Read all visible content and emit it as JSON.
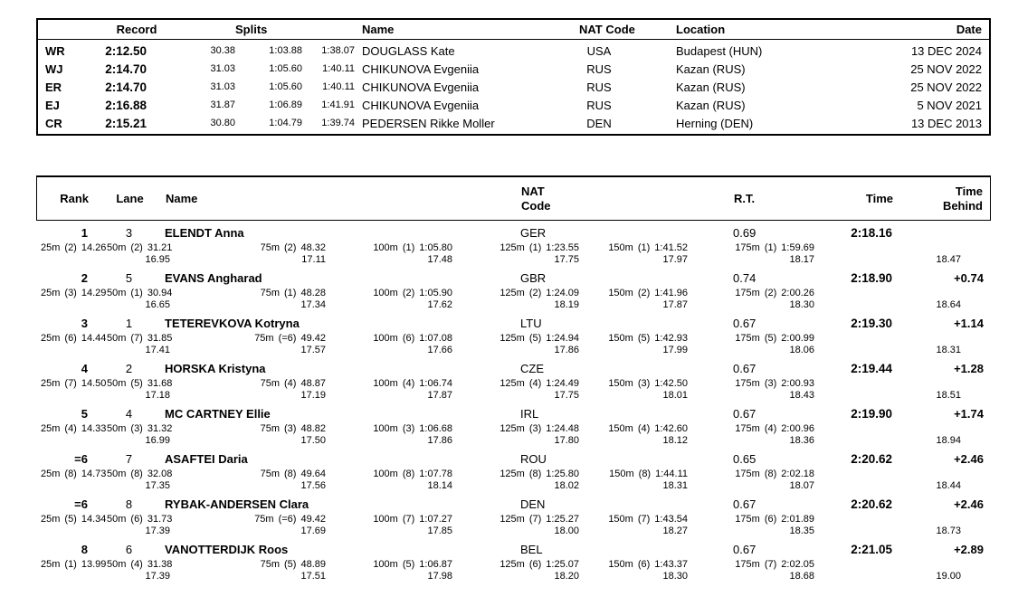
{
  "records_table": {
    "headers": {
      "record": "Record",
      "splits": "Splits",
      "name": "Name",
      "nat_code": "NAT Code",
      "location": "Location",
      "date": "Date"
    },
    "rows": [
      {
        "type": "WR",
        "time": "2:12.50",
        "split1": "30.38",
        "split2": "1:03.88",
        "split3": "1:38.07",
        "name": "DOUGLASS Kate",
        "nat": "USA",
        "location": "Budapest (HUN)",
        "date": "13 DEC 2024"
      },
      {
        "type": "WJ",
        "time": "2:14.70",
        "split1": "31.03",
        "split2": "1:05.60",
        "split3": "1:40.11",
        "name": "CHIKUNOVA Evgeniia",
        "nat": "RUS",
        "location": "Kazan (RUS)",
        "date": "25 NOV 2022"
      },
      {
        "type": "ER",
        "time": "2:14.70",
        "split1": "31.03",
        "split2": "1:05.60",
        "split3": "1:40.11",
        "name": "CHIKUNOVA Evgeniia",
        "nat": "RUS",
        "location": "Kazan (RUS)",
        "date": "25 NOV 2022"
      },
      {
        "type": "EJ",
        "time": "2:16.88",
        "split1": "31.87",
        "split2": "1:06.89",
        "split3": "1:41.91",
        "name": "CHIKUNOVA Evgeniia",
        "nat": "RUS",
        "location": "Kazan (RUS)",
        "date": "5 NOV 2021"
      },
      {
        "type": "CR",
        "time": "2:15.21",
        "split1": "30.80",
        "split2": "1:04.79",
        "split3": "1:39.74",
        "name": "PEDERSEN Rikke Moller",
        "nat": "DEN",
        "location": "Herning (DEN)",
        "date": "13 DEC 2013"
      }
    ]
  },
  "results_table": {
    "headers": {
      "rank": "Rank",
      "lane": "Lane",
      "name": "Name",
      "nat_line1": "NAT",
      "nat_line2": "Code",
      "rt": "R.T.",
      "time": "Time",
      "behind_line1": "Time",
      "behind_line2": "Behind"
    },
    "rows": [
      {
        "rank": "1",
        "lane": "3",
        "name": "ELENDT Anna",
        "nat": "GER",
        "rt": "0.69",
        "time": "2:18.16",
        "behind": "",
        "final_lap": "18.47",
        "splits": [
          {
            "d": "25m",
            "p": "(2)",
            "t": "14.26",
            "lap": ""
          },
          {
            "d": "50m",
            "p": "(2)",
            "t": "31.21",
            "lap": "16.95"
          },
          {
            "d": "75m",
            "p": "(2)",
            "t": "48.32",
            "lap": "17.11"
          },
          {
            "d": "100m",
            "p": "(1)",
            "t": "1:05.80",
            "lap": "17.48"
          },
          {
            "d": "125m",
            "p": "(1)",
            "t": "1:23.55",
            "lap": "17.75"
          },
          {
            "d": "150m",
            "p": "(1)",
            "t": "1:41.52",
            "lap": "17.97"
          },
          {
            "d": "175m",
            "p": "(1)",
            "t": "1:59.69",
            "lap": "18.17"
          }
        ]
      },
      {
        "rank": "2",
        "lane": "5",
        "name": "EVANS Angharad",
        "nat": "GBR",
        "rt": "0.74",
        "time": "2:18.90",
        "behind": "+0.74",
        "final_lap": "18.64",
        "splits": [
          {
            "d": "25m",
            "p": "(3)",
            "t": "14.29",
            "lap": ""
          },
          {
            "d": "50m",
            "p": "(1)",
            "t": "30.94",
            "lap": "16.65"
          },
          {
            "d": "75m",
            "p": "(1)",
            "t": "48.28",
            "lap": "17.34"
          },
          {
            "d": "100m",
            "p": "(2)",
            "t": "1:05.90",
            "lap": "17.62"
          },
          {
            "d": "125m",
            "p": "(2)",
            "t": "1:24.09",
            "lap": "18.19"
          },
          {
            "d": "150m",
            "p": "(2)",
            "t": "1:41.96",
            "lap": "17.87"
          },
          {
            "d": "175m",
            "p": "(2)",
            "t": "2:00.26",
            "lap": "18.30"
          }
        ]
      },
      {
        "rank": "3",
        "lane": "1",
        "name": "TETEREVKOVA Kotryna",
        "nat": "LTU",
        "rt": "0.67",
        "time": "2:19.30",
        "behind": "+1.14",
        "final_lap": "18.31",
        "splits": [
          {
            "d": "25m",
            "p": "(6)",
            "t": "14.44",
            "lap": ""
          },
          {
            "d": "50m",
            "p": "(7)",
            "t": "31.85",
            "lap": "17.41"
          },
          {
            "d": "75m",
            "p": "(=6)",
            "t": "49.42",
            "lap": "17.57"
          },
          {
            "d": "100m",
            "p": "(6)",
            "t": "1:07.08",
            "lap": "17.66"
          },
          {
            "d": "125m",
            "p": "(5)",
            "t": "1:24.94",
            "lap": "17.86"
          },
          {
            "d": "150m",
            "p": "(5)",
            "t": "1:42.93",
            "lap": "17.99"
          },
          {
            "d": "175m",
            "p": "(5)",
            "t": "2:00.99",
            "lap": "18.06"
          }
        ]
      },
      {
        "rank": "4",
        "lane": "2",
        "name": "HORSKA Kristyna",
        "nat": "CZE",
        "rt": "0.67",
        "time": "2:19.44",
        "behind": "+1.28",
        "final_lap": "18.51",
        "splits": [
          {
            "d": "25m",
            "p": "(7)",
            "t": "14.50",
            "lap": ""
          },
          {
            "d": "50m",
            "p": "(5)",
            "t": "31.68",
            "lap": "17.18"
          },
          {
            "d": "75m",
            "p": "(4)",
            "t": "48.87",
            "lap": "17.19"
          },
          {
            "d": "100m",
            "p": "(4)",
            "t": "1:06.74",
            "lap": "17.87"
          },
          {
            "d": "125m",
            "p": "(4)",
            "t": "1:24.49",
            "lap": "17.75"
          },
          {
            "d": "150m",
            "p": "(3)",
            "t": "1:42.50",
            "lap": "18.01"
          },
          {
            "d": "175m",
            "p": "(3)",
            "t": "2:00.93",
            "lap": "18.43"
          }
        ]
      },
      {
        "rank": "5",
        "lane": "4",
        "name": "MC CARTNEY Ellie",
        "nat": "IRL",
        "rt": "0.67",
        "time": "2:19.90",
        "behind": "+1.74",
        "final_lap": "18.94",
        "splits": [
          {
            "d": "25m",
            "p": "(4)",
            "t": "14.33",
            "lap": ""
          },
          {
            "d": "50m",
            "p": "(3)",
            "t": "31.32",
            "lap": "16.99"
          },
          {
            "d": "75m",
            "p": "(3)",
            "t": "48.82",
            "lap": "17.50"
          },
          {
            "d": "100m",
            "p": "(3)",
            "t": "1:06.68",
            "lap": "17.86"
          },
          {
            "d": "125m",
            "p": "(3)",
            "t": "1:24.48",
            "lap": "17.80"
          },
          {
            "d": "150m",
            "p": "(4)",
            "t": "1:42.60",
            "lap": "18.12"
          },
          {
            "d": "175m",
            "p": "(4)",
            "t": "2:00.96",
            "lap": "18.36"
          }
        ]
      },
      {
        "rank": "=6",
        "lane": "7",
        "name": "ASAFTEI Daria",
        "nat": "ROU",
        "rt": "0.65",
        "time": "2:20.62",
        "behind": "+2.46",
        "final_lap": "18.44",
        "splits": [
          {
            "d": "25m",
            "p": "(8)",
            "t": "14.73",
            "lap": ""
          },
          {
            "d": "50m",
            "p": "(8)",
            "t": "32.08",
            "lap": "17.35"
          },
          {
            "d": "75m",
            "p": "(8)",
            "t": "49.64",
            "lap": "17.56"
          },
          {
            "d": "100m",
            "p": "(8)",
            "t": "1:07.78",
            "lap": "18.14"
          },
          {
            "d": "125m",
            "p": "(8)",
            "t": "1:25.80",
            "lap": "18.02"
          },
          {
            "d": "150m",
            "p": "(8)",
            "t": "1:44.11",
            "lap": "18.31"
          },
          {
            "d": "175m",
            "p": "(8)",
            "t": "2:02.18",
            "lap": "18.07"
          }
        ]
      },
      {
        "rank": "=6",
        "lane": "8",
        "name": "RYBAK-ANDERSEN Clara",
        "nat": "DEN",
        "rt": "0.67",
        "time": "2:20.62",
        "behind": "+2.46",
        "final_lap": "18.73",
        "splits": [
          {
            "d": "25m",
            "p": "(5)",
            "t": "14.34",
            "lap": ""
          },
          {
            "d": "50m",
            "p": "(6)",
            "t": "31.73",
            "lap": "17.39"
          },
          {
            "d": "75m",
            "p": "(=6)",
            "t": "49.42",
            "lap": "17.69"
          },
          {
            "d": "100m",
            "p": "(7)",
            "t": "1:07.27",
            "lap": "17.85"
          },
          {
            "d": "125m",
            "p": "(7)",
            "t": "1:25.27",
            "lap": "18.00"
          },
          {
            "d": "150m",
            "p": "(7)",
            "t": "1:43.54",
            "lap": "18.27"
          },
          {
            "d": "175m",
            "p": "(6)",
            "t": "2:01.89",
            "lap": "18.35"
          }
        ]
      },
      {
        "rank": "8",
        "lane": "6",
        "name": "VANOTTERDIJK Roos",
        "nat": "BEL",
        "rt": "0.67",
        "time": "2:21.05",
        "behind": "+2.89",
        "final_lap": "19.00",
        "splits": [
          {
            "d": "25m",
            "p": "(1)",
            "t": "13.99",
            "lap": ""
          },
          {
            "d": "50m",
            "p": "(4)",
            "t": "31.38",
            "lap": "17.39"
          },
          {
            "d": "75m",
            "p": "(5)",
            "t": "48.89",
            "lap": "17.51"
          },
          {
            "d": "100m",
            "p": "(5)",
            "t": "1:06.87",
            "lap": "17.98"
          },
          {
            "d": "125m",
            "p": "(6)",
            "t": "1:25.07",
            "lap": "18.20"
          },
          {
            "d": "150m",
            "p": "(6)",
            "t": "1:43.37",
            "lap": "18.30"
          },
          {
            "d": "175m",
            "p": "(7)",
            "t": "2:02.05",
            "lap": "18.68"
          }
        ]
      }
    ]
  }
}
